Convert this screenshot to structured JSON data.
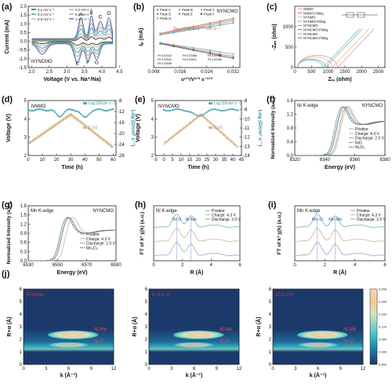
{
  "chart_data": [
    {
      "id": "a",
      "panel_label": "(a)",
      "type": "line",
      "title": "",
      "inner_label": "NYNCMO",
      "xlabel": "Voltage (V vs. Na⁺/Na)",
      "ylabel": "Current (mA)",
      "xlim": [
        1.9,
        4.4
      ],
      "ylim": [
        -1.5,
        2.0
      ],
      "xticks": [
        "2.0",
        "2.5",
        "3.0",
        "3.5",
        "4.0",
        "4.5"
      ],
      "yticks": [
        "-1.5",
        "-1.0",
        "-0.5",
        "0.0",
        "0.5",
        "1.0",
        "1.5",
        "2.0"
      ],
      "peaks_top": [
        "A",
        "B",
        "C",
        "D"
      ],
      "peaks_bottom": [
        "E",
        "F",
        "G"
      ],
      "legend": [
        "0.1 mV s⁻¹",
        "0.2 mV s⁻¹",
        "0.4 mV s⁻¹",
        "0.6 mV s⁻¹",
        "0.8 mV s⁻¹",
        "1 mV s⁻¹"
      ],
      "colors": [
        "#1b1b1b",
        "#b9a86b",
        "#1a8c99",
        "#6ea1c7",
        "#ef9d7a",
        "#2b58b8"
      ],
      "scales": [
        0.18,
        0.32,
        0.52,
        0.7,
        0.86,
        1.0
      ]
    },
    {
      "id": "b",
      "panel_label": "(b)",
      "type": "scatter",
      "inner_label": "NYNCMO",
      "xlabel": "υ¹ᐟ²/V¹ᐟ² s⁻¹ᐟ²",
      "ylabel": "Iₚ (mA)",
      "xlim": [
        0.008,
        0.034
      ],
      "ylim": [
        -1.6,
        1.8
      ],
      "xticks": [
        "0.008",
        "0.016",
        "0.024",
        "0.032"
      ],
      "legend": [
        "Peak A",
        "Peak B",
        "Peak C",
        "Peak D",
        "Peak E",
        "Peak F",
        "Peak G"
      ],
      "colors": [
        "#e07070",
        "#d4b060",
        "#9ab0d0",
        "#6aa0c0",
        "#c070a0",
        "#5a5a5a",
        "#90b8a0"
      ],
      "series": [
        {
          "name": "Peak A",
          "x": [
            0.01,
            0.014,
            0.02,
            0.025,
            0.028,
            0.032
          ],
          "y": [
            0.3,
            0.45,
            0.68,
            0.86,
            0.98,
            1.12
          ]
        },
        {
          "name": "Peak B",
          "x": [
            0.01,
            0.014,
            0.02,
            0.025,
            0.028,
            0.032
          ],
          "y": [
            0.28,
            0.42,
            0.62,
            0.8,
            0.92,
            1.05
          ]
        },
        {
          "name": "Peak C",
          "x": [
            0.01,
            0.014,
            0.02,
            0.025,
            0.028,
            0.032
          ],
          "y": [
            0.25,
            0.38,
            0.58,
            0.74,
            0.85,
            0.98
          ]
        },
        {
          "name": "Peak D",
          "x": [
            0.01,
            0.014,
            0.02,
            0.025,
            0.028,
            0.032
          ],
          "y": [
            0.22,
            0.34,
            0.52,
            0.66,
            0.76,
            0.88
          ]
        },
        {
          "name": "Peak E",
          "x": [
            0.01,
            0.014,
            0.02,
            0.025,
            0.028,
            0.032
          ],
          "y": [
            -0.25,
            -0.38,
            -0.58,
            -0.74,
            -0.86,
            -0.98
          ]
        },
        {
          "name": "Peak F",
          "x": [
            0.01,
            0.014,
            0.02,
            0.025,
            0.028,
            0.032
          ],
          "y": [
            -0.28,
            -0.42,
            -0.64,
            -0.82,
            -0.95,
            -1.08
          ]
        },
        {
          "name": "Peak G",
          "x": [
            0.01,
            0.014,
            0.02,
            0.025,
            0.028,
            0.032
          ],
          "y": [
            -0.22,
            -0.33,
            -0.5,
            -0.64,
            -0.74,
            -0.85
          ]
        }
      ],
      "annotation": "Dₐᵥₑ=2.82×10⁻¹² cm² s⁻¹",
      "fits": [
        "Fit 0.02342",
        "Fit 0.02486",
        "Fit 0.02757",
        "Fit 0.02541",
        "Fit 0.02611",
        "Fit 0.02354",
        "Fit 0.02658"
      ]
    },
    {
      "id": "c",
      "panel_label": "(c)",
      "type": "line",
      "xlabel": "Zᵣₑ (ohm)",
      "ylabel": "-Zᵢₘ (ohm)",
      "xlim": [
        0,
        2700
      ],
      "ylim": [
        0,
        1500
      ],
      "xticks": [
        "0",
        "500",
        "1000",
        "1500",
        "2000",
        "2500"
      ],
      "yticks": [
        "0",
        "500",
        "1000"
      ],
      "legend": [
        "NNMO",
        "NNMO-Fitting",
        "NYNMO",
        "NYNMO-Fitting",
        "NYNCMO",
        "NYNCMO-Fitting",
        "NYNCMO",
        "NYNCMO-Fitting"
      ],
      "colors": [
        "#ee8a8a",
        "#e06060",
        "#d9c08a",
        "#bfa060",
        "#7fa8c9",
        "#4f7ea8",
        "#5fb8b0",
        "#3a8a80"
      ]
    },
    {
      "id": "d",
      "panel_label": "(d)",
      "type": "line",
      "inner_label": "NNMO",
      "xlabel": "Time (h)",
      "ylabel": "Voltage (V)",
      "y2label": "Log (D/cm² s⁻¹)",
      "xlim": [
        0,
        62
      ],
      "ylim": [
        2,
        5
      ],
      "y2lim": [
        -28,
        -8
      ],
      "xticks": [
        "0",
        "10",
        "20",
        "30",
        "40",
        "50",
        "60"
      ],
      "yticks": [
        "2",
        "3",
        "4",
        "5"
      ],
      "y2ticks": [
        "-8",
        "-12",
        "-16",
        "-20",
        "-24",
        "-28"
      ],
      "legend": [
        "Log (D/cm² s⁻¹)",
        "E (V)"
      ],
      "colors": [
        "#5aacb8",
        "#d9b58a"
      ]
    },
    {
      "id": "e",
      "panel_label": "(e)",
      "type": "line",
      "inner_label": "NYNCMO",
      "xlabel": "Time (h)",
      "ylabel": "Voltage (V)",
      "y2label": "Log (D/cm² s⁻¹)",
      "xlim": [
        -5,
        45
      ],
      "ylim": [
        2,
        5
      ],
      "y2lim": [
        -14,
        -8
      ],
      "xticks": [
        "-5",
        "0",
        "5",
        "10",
        "15",
        "20",
        "25",
        "30",
        "35",
        "40",
        "45"
      ],
      "yticks": [
        "2",
        "3",
        "4",
        "5"
      ],
      "y2ticks": [
        "-8",
        "-9",
        "-10",
        "-11",
        "-12",
        "-13",
        "-14"
      ],
      "legend": [
        "Log (D/cm² s⁻¹)",
        "E (V)"
      ],
      "colors": [
        "#5aacb8",
        "#d9b58a"
      ]
    },
    {
      "id": "f",
      "panel_label": "(f)",
      "type": "line",
      "inner_label": "Ni K-edge",
      "inner_label2": "NYNCMO",
      "xlabel": "Energy (eV)",
      "ylabel": "Normalized Intensity (a.u.)",
      "xlim": [
        8320,
        8380
      ],
      "ylim": [
        0,
        1.6
      ],
      "xticks": [
        "8320",
        "8340",
        "8360",
        "8380"
      ],
      "yticks": [
        "0.0",
        "0.4",
        "0.8",
        "1.2",
        "1.6"
      ],
      "legend": [
        "Pristine",
        "Charge: 4.3 V",
        "Discharge: 2.0 V",
        "NiO",
        "Ni₂O₃"
      ],
      "colors": [
        "#9aa7ba",
        "#cdb48a",
        "#6fb4a8",
        "#555555",
        "#333333"
      ]
    },
    {
      "id": "g",
      "panel_label": "(g)",
      "type": "line",
      "inner_label": "Mn K-edge",
      "inner_label2": "NYNCMO",
      "xlabel": "Energy (eV)",
      "ylabel": "Normalized Intensity (a.u.)",
      "xlim": [
        6530,
        6590
      ],
      "ylim": [
        0,
        1.8
      ],
      "xticks": [
        "6530",
        "6550",
        "6570",
        "6590"
      ],
      "yticks": [
        "0.0",
        "0.3",
        "0.6",
        "0.9",
        "1.2",
        "1.5",
        "1.8"
      ],
      "legend": [
        "Pristine",
        "Charge: 4.3 V",
        "Discharge: 2.0 V",
        "Mn₂O₃"
      ],
      "colors": [
        "#9aa7ba",
        "#cdb48a",
        "#6fb4a8",
        "#444444"
      ]
    },
    {
      "id": "h",
      "panel_label": "(h)",
      "type": "line",
      "inner_label": "Ni K-edge",
      "xlabel": "R (Å)",
      "ylabel": "FT of k³ χ(k) (a.u.)",
      "xlim": [
        0,
        6
      ],
      "xticks": [
        "0",
        "2",
        "4",
        "6"
      ],
      "annotations": [
        "Ni-O",
        "Ni-Me"
      ],
      "legend": [
        "Pristine",
        "Charge: 4.3 V",
        "Discharge: 2.0 V"
      ],
      "colors": [
        "#9aa7ba",
        "#cdb48a",
        "#6fb4a8"
      ]
    },
    {
      "id": "i",
      "panel_label": "(i)",
      "type": "line",
      "inner_label": "Mn K-edge",
      "xlabel": "R (Å)",
      "ylabel": "FT of k³ χ(k) (a.u.)",
      "xlim": [
        0,
        6
      ],
      "xticks": [
        "0",
        "2",
        "4",
        "6"
      ],
      "annotations": [
        "Mn-O",
        "Mn-Me"
      ],
      "legend": [
        "Pristine",
        "Charge: 4.3 V",
        "Discharge: 2.0 V"
      ],
      "colors": [
        "#9aa7ba",
        "#cdb48a",
        "#6fb4a8"
      ]
    },
    {
      "id": "j",
      "panel_label": "(j)",
      "type": "heatmap",
      "subtitles": [
        "Pristine",
        "C-4.3 V",
        "D-2.0 V"
      ],
      "xlabel": "k (Å⁻¹)",
      "ylabel": "R+α (Å)",
      "xlim": [
        0,
        12
      ],
      "ylim": [
        0,
        6
      ],
      "xticks": [
        "0",
        "3",
        "6",
        "9",
        "12"
      ],
      "yticks": [
        "0",
        "1",
        "2",
        "3",
        "4",
        "5",
        "6"
      ],
      "annotations": [
        "Ni-Me",
        "Ni-O"
      ],
      "colorbar_ticks": [
        "0.000",
        "0.040",
        "0.080",
        "0.120",
        "0.160",
        "0.200",
        "0.240"
      ],
      "colorbar_colors": [
        "#1b3a6b",
        "#1f6f9c",
        "#2fb0c0",
        "#7bd2c7",
        "#d9e2c0",
        "#f2c999",
        "#f7d7bf"
      ]
    }
  ]
}
